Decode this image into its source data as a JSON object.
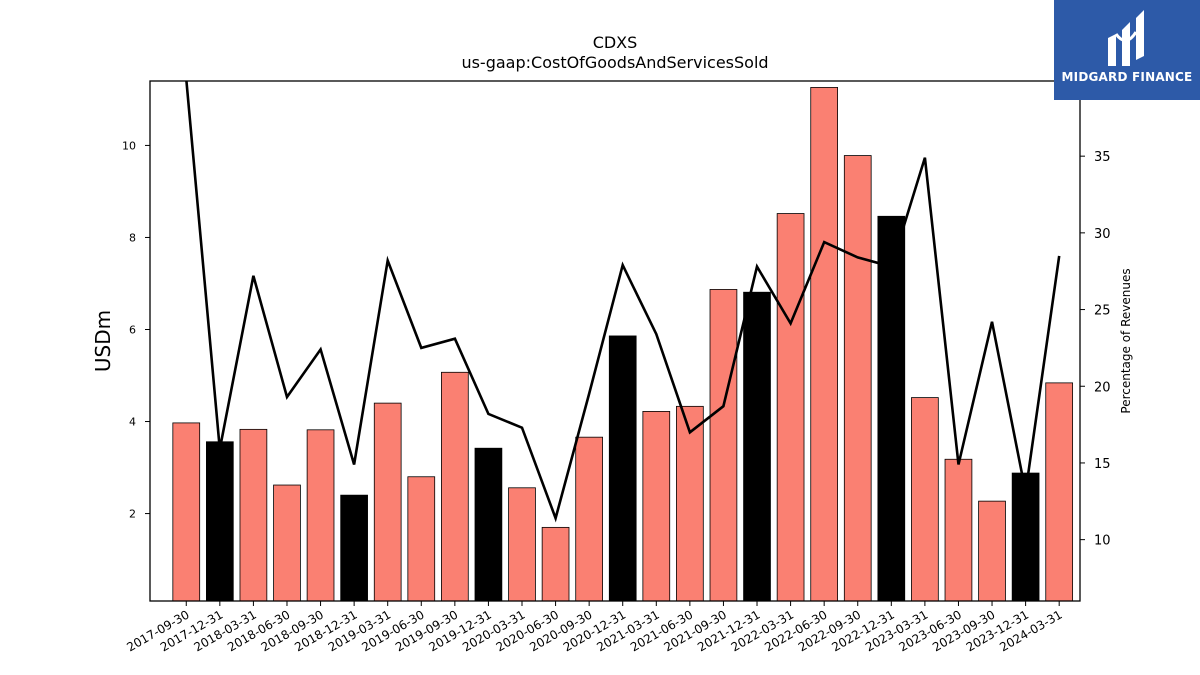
{
  "chart_data": {
    "type": "bar",
    "title": "CDXS",
    "subtitle": "us-gaap:CostOfGoodsAndServicesSold",
    "ylabel": "USDm",
    "y2label": "Percentage of Revenues",
    "ylim": [
      0.1,
      11.4
    ],
    "y2lim": [
      6.0,
      39.9
    ],
    "yticks": [
      2,
      4,
      6,
      8,
      10
    ],
    "y2ticks": [
      10,
      15,
      20,
      25,
      30,
      35
    ],
    "categories": [
      "2017-09-30",
      "2017-12-31",
      "2018-03-31",
      "2018-06-30",
      "2018-09-30",
      "2018-12-31",
      "2019-03-31",
      "2019-06-30",
      "2019-09-30",
      "2019-12-31",
      "2020-03-31",
      "2020-06-30",
      "2020-09-30",
      "2020-12-31",
      "2021-03-31",
      "2021-06-30",
      "2021-09-30",
      "2021-12-31",
      "2022-03-31",
      "2022-06-30",
      "2022-09-30",
      "2022-12-31",
      "2023-03-31",
      "2023-06-30",
      "2023-09-30",
      "2023-12-31",
      "2024-03-31"
    ],
    "series": [
      {
        "type": "bar",
        "axis": "left",
        "values": [
          3.97,
          3.56,
          3.83,
          2.62,
          3.82,
          2.4,
          4.4,
          2.8,
          5.07,
          3.42,
          2.56,
          1.7,
          3.66,
          5.86,
          4.22,
          4.33,
          6.87,
          6.81,
          8.52,
          11.26,
          9.78,
          8.46,
          4.52,
          3.18,
          2.27,
          2.88,
          4.84
        ],
        "colors": [
          "#fa8072",
          "#000000",
          "#fa8072",
          "#fa8072",
          "#fa8072",
          "#000000",
          "#fa8072",
          "#fa8072",
          "#fa8072",
          "#000000",
          "#fa8072",
          "#fa8072",
          "#fa8072",
          "#000000",
          "#fa8072",
          "#fa8072",
          "#fa8072",
          "#000000",
          "#fa8072",
          "#fa8072",
          "#fa8072",
          "#000000",
          "#fa8072",
          "#fa8072",
          "#fa8072",
          "#000000",
          "#fa8072"
        ]
      },
      {
        "type": "line",
        "axis": "right",
        "color": "#000000",
        "values": [
          40.0,
          15.9,
          27.2,
          19.3,
          22.4,
          14.9,
          28.2,
          22.5,
          23.1,
          18.2,
          17.3,
          11.4,
          19.5,
          27.9,
          23.4,
          17.0,
          18.7,
          27.8,
          24.1,
          29.4,
          28.4,
          27.8,
          34.9,
          14.9,
          24.2,
          13.1,
          28.5
        ]
      }
    ]
  },
  "logo": {
    "text": "MIDGARD FINANCE"
  }
}
